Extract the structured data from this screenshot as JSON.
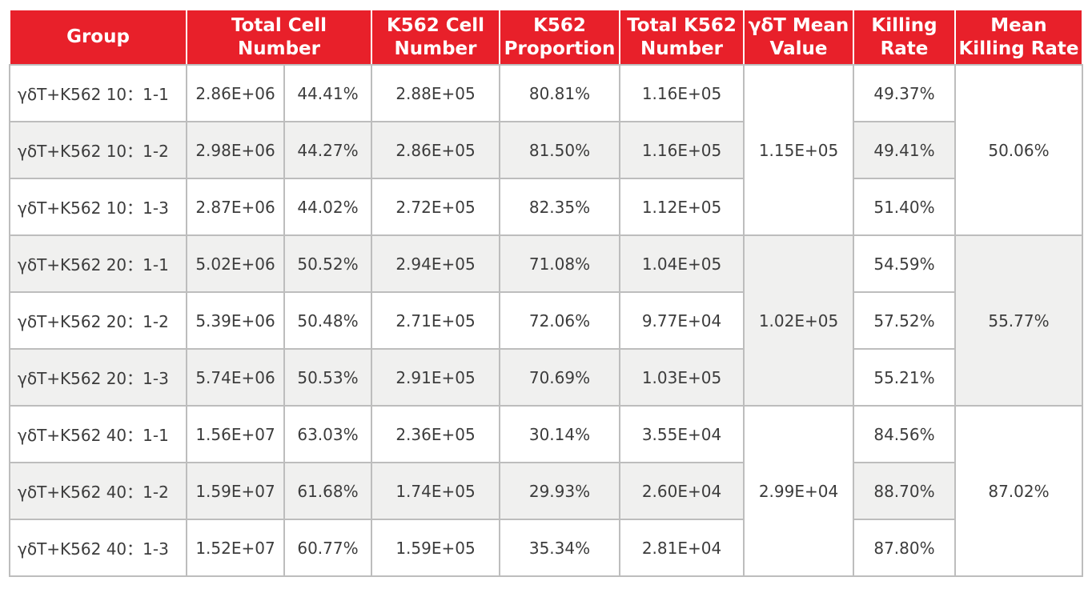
{
  "table": {
    "headers": {
      "group": "Group",
      "total_cell_number": "Total Cell Number",
      "k562_cell_number": "K562 Cell Number",
      "k562_proportion": "K562 Proportion",
      "total_k562_number": "Total K562 Number",
      "gdt_mean_value": "γδT Mean Value",
      "killing_rate": "Killing Rate",
      "mean_killing_rate": "Mean Killing Rate"
    },
    "rows": [
      {
        "group": "γδT+K562 10：1-1",
        "total_cell": "2.86E+06",
        "pct": "44.41%",
        "k562_cell": "2.88E+05",
        "k562_prop": "80.81%",
        "total_k562": "1.16E+05",
        "killing": "49.37%"
      },
      {
        "group": "γδT+K562 10：1-2",
        "total_cell": "2.98E+06",
        "pct": "44.27%",
        "k562_cell": "2.86E+05",
        "k562_prop": "81.50%",
        "total_k562": "1.16E+05",
        "killing": "49.41%"
      },
      {
        "group": "γδT+K562 10：1-3",
        "total_cell": "2.87E+06",
        "pct": "44.02%",
        "k562_cell": "2.72E+05",
        "k562_prop": "82.35%",
        "total_k562": "1.12E+05",
        "killing": "51.40%"
      },
      {
        "group": "γδT+K562 20：1-1",
        "total_cell": "5.02E+06",
        "pct": "50.52%",
        "k562_cell": "2.94E+05",
        "k562_prop": "71.08%",
        "total_k562": "1.04E+05",
        "killing": "54.59%"
      },
      {
        "group": "γδT+K562 20：1-2",
        "total_cell": "5.39E+06",
        "pct": "50.48%",
        "k562_cell": "2.71E+05",
        "k562_prop": "72.06%",
        "total_k562": "9.77E+04",
        "killing": "57.52%"
      },
      {
        "group": "γδT+K562 20：1-3",
        "total_cell": "5.74E+06",
        "pct": "50.53%",
        "k562_cell": "2.91E+05",
        "k562_prop": "70.69%",
        "total_k562": "1.03E+05",
        "killing": "55.21%"
      },
      {
        "group": "γδT+K562 40：1-1",
        "total_cell": "1.56E+07",
        "pct": "63.03%",
        "k562_cell": "2.36E+05",
        "k562_prop": "30.14%",
        "total_k562": "3.55E+04",
        "killing": "84.56%"
      },
      {
        "group": "γδT+K562 40：1-2",
        "total_cell": "1.59E+07",
        "pct": "61.68%",
        "k562_cell": "1.74E+05",
        "k562_prop": "29.93%",
        "total_k562": "2.60E+04",
        "killing": "88.70%"
      },
      {
        "group": "γδT+K562 40：1-3",
        "total_cell": "1.52E+07",
        "pct": "60.77%",
        "k562_cell": "1.59E+05",
        "k562_prop": "35.34%",
        "total_k562": "2.81E+04",
        "killing": "87.80%"
      }
    ],
    "group_summaries": [
      {
        "gdt_mean": "1.15E+05",
        "mean_killing": "50.06%"
      },
      {
        "gdt_mean": "1.02E+05",
        "mean_killing": "55.77%"
      },
      {
        "gdt_mean": "2.99E+04",
        "mean_killing": "87.02%"
      }
    ]
  },
  "colors": {
    "header_red": "#e8202a",
    "header_text": "#ffffff",
    "shaded_row": "#f0f0ef",
    "border": "#bdbdbd",
    "body_text": "#3c3c3c"
  }
}
